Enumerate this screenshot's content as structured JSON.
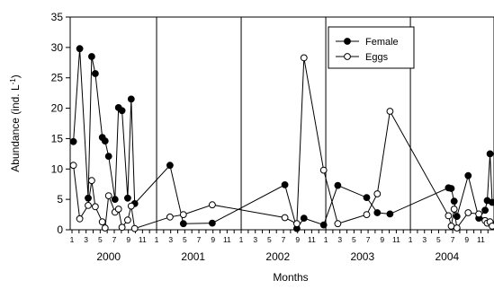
{
  "chart_data": {
    "type": "line",
    "xlabel": "Months",
    "ylabel": "Abundance (ind. L",
    "ylabel_superscript": "-1",
    "ylabel_suffix": ")",
    "ylim": [
      0,
      35
    ],
    "yticks": [
      "0",
      "5",
      "10",
      "15",
      "20",
      "25",
      "30",
      "35"
    ],
    "xlim": [
      0,
      59.6
    ],
    "month_ticks": [
      "1",
      "3",
      "5",
      "7",
      "9",
      "11"
    ],
    "years": [
      "2000",
      "2001",
      "2002",
      "2003",
      "2004"
    ],
    "year_dividers": [
      12,
      24,
      36,
      48
    ],
    "legend_position": "top-right",
    "series": [
      {
        "name": "Female",
        "marker": "filled-circle",
        "color": "#000000",
        "points": [
          [
            0.2,
            14.5
          ],
          [
            1.1,
            29.8
          ],
          [
            2.3,
            5.2
          ],
          [
            2.8,
            28.5
          ],
          [
            3.3,
            25.7
          ],
          [
            4.3,
            15.2
          ],
          [
            4.7,
            14.6
          ],
          [
            5.2,
            12.1
          ],
          [
            6.1,
            5.0
          ],
          [
            6.6,
            20.1
          ],
          [
            7.1,
            19.6
          ],
          [
            7.9,
            5.2
          ],
          [
            8.4,
            21.5
          ],
          [
            8.9,
            4.3
          ],
          [
            13.9,
            10.6
          ],
          [
            15.8,
            1.0
          ],
          [
            19.9,
            1.1
          ],
          [
            30.2,
            7.4
          ],
          [
            31.9,
            0.2
          ],
          [
            32.9,
            1.9
          ],
          [
            35.7,
            0.8
          ],
          [
            37.7,
            7.3
          ],
          [
            41.8,
            5.3
          ],
          [
            43.3,
            2.8
          ],
          [
            45.1,
            2.6
          ],
          [
            53.4,
            6.9
          ],
          [
            53.8,
            6.8
          ],
          [
            54.2,
            4.7
          ],
          [
            54.6,
            2.2
          ],
          [
            56.2,
            8.9
          ],
          [
            57.7,
            1.9
          ],
          [
            58.6,
            3.2
          ],
          [
            58.9,
            4.8
          ],
          [
            59.3,
            12.5
          ],
          [
            59.6,
            4.5
          ]
        ]
      },
      {
        "name": "Eggs",
        "marker": "open-circle",
        "color": "#000000",
        "points": [
          [
            0.2,
            10.6
          ],
          [
            1.1,
            1.8
          ],
          [
            2.3,
            4.0
          ],
          [
            2.8,
            8.1
          ],
          [
            3.3,
            3.8
          ],
          [
            4.3,
            1.3
          ],
          [
            4.7,
            0.3
          ],
          [
            5.2,
            5.6
          ],
          [
            6.1,
            2.9
          ],
          [
            6.6,
            3.4
          ],
          [
            7.1,
            0.4
          ],
          [
            7.9,
            1.6
          ],
          [
            8.4,
            3.9
          ],
          [
            8.9,
            0.2
          ],
          [
            13.9,
            2.1
          ],
          [
            15.8,
            2.5
          ],
          [
            19.9,
            4.1
          ],
          [
            30.2,
            2.0
          ],
          [
            31.9,
            1.0
          ],
          [
            32.9,
            28.3
          ],
          [
            35.7,
            9.8
          ],
          [
            37.7,
            1.0
          ],
          [
            41.8,
            2.5
          ],
          [
            43.3,
            5.9
          ],
          [
            45.1,
            19.5
          ],
          [
            53.4,
            2.3
          ],
          [
            53.8,
            0.6
          ],
          [
            54.2,
            3.4
          ],
          [
            54.6,
            0.3
          ],
          [
            56.2,
            2.8
          ],
          [
            57.7,
            2.6
          ],
          [
            58.6,
            1.5
          ],
          [
            58.9,
            1.1
          ],
          [
            59.3,
            1.3
          ],
          [
            59.6,
            0.6
          ]
        ]
      }
    ]
  }
}
